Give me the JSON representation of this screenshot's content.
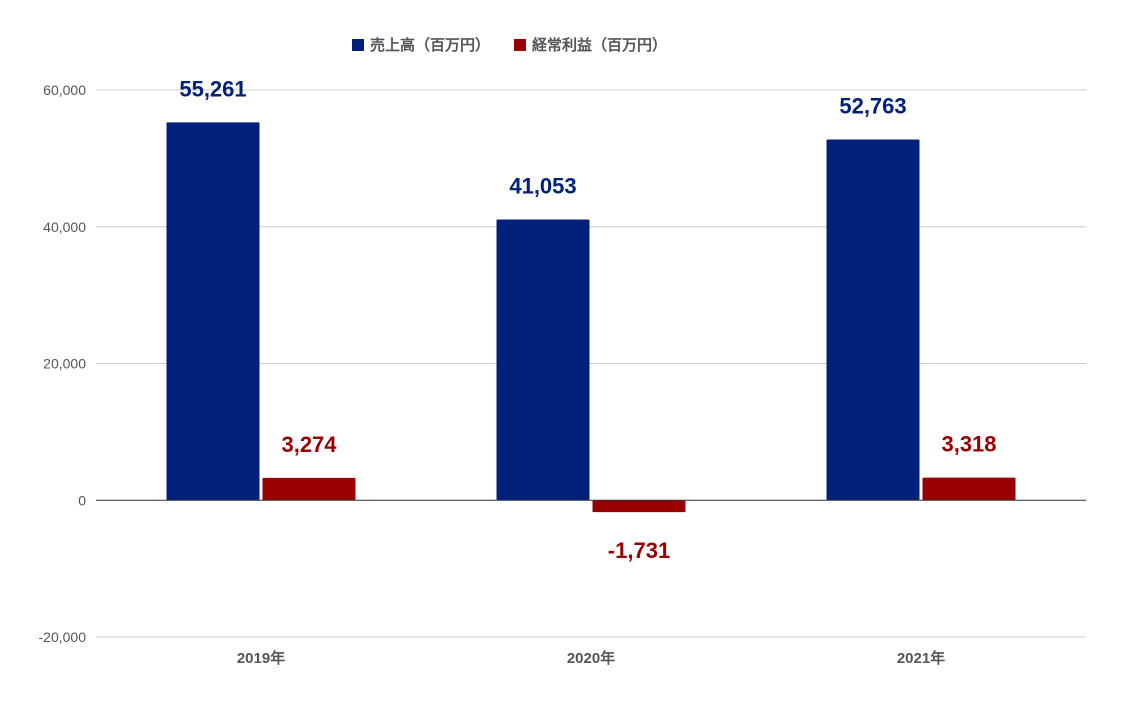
{
  "chart_data": {
    "type": "bar",
    "categories": [
      "2019年",
      "2020年",
      "2021年"
    ],
    "series": [
      {
        "name": "売上高（百万円）",
        "color": "#00207a",
        "values": [
          55261,
          41053,
          52763
        ],
        "labels": [
          "55,261",
          "41,053",
          "52,763"
        ]
      },
      {
        "name": "経常利益（百万円）",
        "color": "#990000",
        "values": [
          3274,
          -1731,
          3318
        ],
        "labels": [
          "3,274",
          "-1,731",
          "3,318"
        ]
      }
    ],
    "ylim": [
      -20000,
      60000
    ],
    "yticks": [
      60000,
      40000,
      20000,
      0,
      -20000
    ],
    "ytick_labels": [
      "60,000",
      "40,000",
      "20,000",
      "0",
      "-20,000"
    ],
    "grid": true,
    "legend_position": "top-center",
    "title": "",
    "xlabel": "",
    "ylabel": ""
  }
}
